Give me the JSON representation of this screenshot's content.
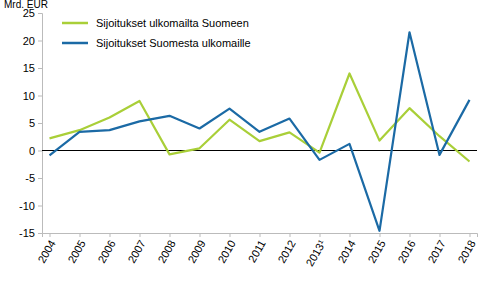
{
  "chart_data": {
    "type": "line",
    "y_label": "Mrd. EUR",
    "categories": [
      "2004",
      "2005",
      "2006",
      "2007",
      "2008",
      "2009",
      "2010",
      "2011",
      "2012",
      "2013¹",
      "2014",
      "2015",
      "2016",
      "2017",
      "2018"
    ],
    "series": [
      {
        "name": "Sijoitukset ulkomailta Suomeen",
        "color": "#a9cf38",
        "values": [
          2.2,
          3.7,
          6.0,
          9.0,
          -0.7,
          0.4,
          5.6,
          1.7,
          3.3,
          -0.4,
          14.0,
          1.8,
          7.7,
          2.6,
          -2.0
        ]
      },
      {
        "name": "Sijoitukset Suomesta ulkomaille",
        "color": "#1b6aa5",
        "values": [
          -0.9,
          3.4,
          3.7,
          5.3,
          6.3,
          4.0,
          7.6,
          3.4,
          5.8,
          -1.7,
          1.2,
          -14.6,
          21.5,
          -0.8,
          9.2
        ]
      }
    ],
    "ylim": [
      -15,
      25
    ],
    "yticks": [
      -15,
      -10,
      -5,
      0,
      5,
      10,
      15,
      20,
      25
    ],
    "grid": false,
    "legend": "top-left"
  }
}
